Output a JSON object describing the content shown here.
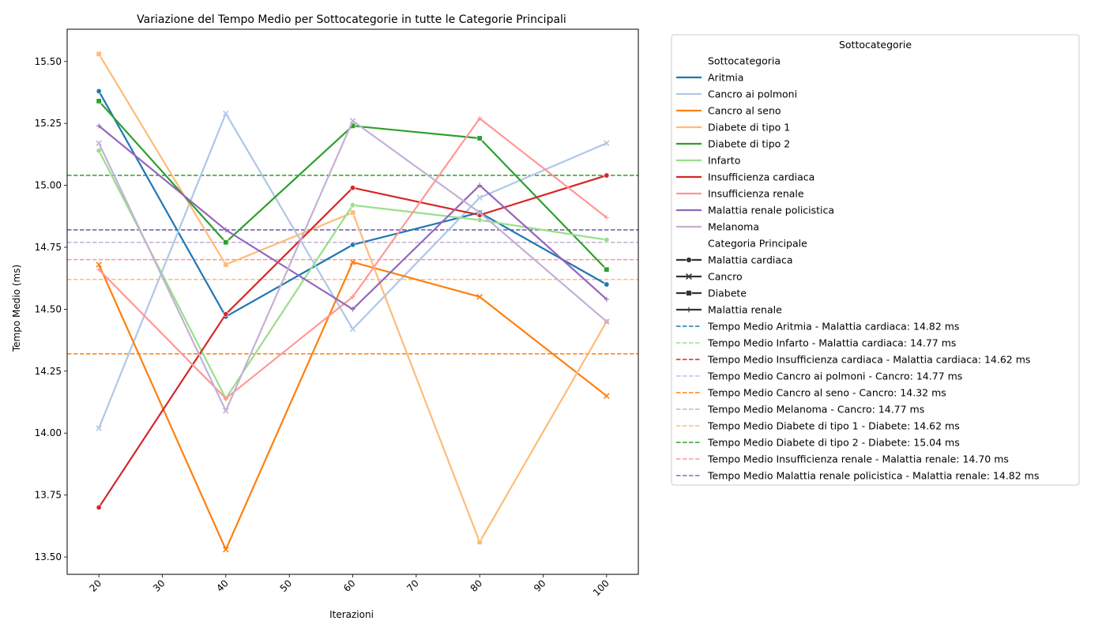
{
  "chart_data": {
    "type": "line",
    "title": "Variazione del Tempo Medio per Sottocategorie in tutte le Categorie Principali",
    "xlabel": "Iterazioni",
    "ylabel": "Tempo Medio (ms)",
    "x": [
      20,
      40,
      60,
      80,
      100
    ],
    "xlim": [
      15,
      105
    ],
    "ylim": [
      13.43,
      15.63
    ],
    "xticks": [
      "20",
      "30",
      "40",
      "50",
      "60",
      "70",
      "80",
      "90",
      "100"
    ],
    "xtick_values": [
      20,
      30,
      40,
      50,
      60,
      70,
      80,
      90,
      100
    ],
    "yticks": [
      "13.50",
      "13.75",
      "14.00",
      "14.25",
      "14.50",
      "14.75",
      "15.00",
      "15.25",
      "15.50"
    ],
    "ytick_values": [
      13.5,
      13.75,
      14.0,
      14.25,
      14.5,
      14.75,
      15.0,
      15.25,
      15.5
    ],
    "grid": false,
    "legend_placement": "outside-right",
    "legend_title": "Sottocategorie",
    "legend_hue_header": "Sottocategoria",
    "legend_style_header": "Categoria Principale",
    "series": [
      {
        "name": "Aritmia",
        "category": "Malattia cardiaca",
        "color": "#1f77b4",
        "marker": "circle",
        "values": [
          15.38,
          14.47,
          14.76,
          14.89,
          14.6
        ]
      },
      {
        "name": "Cancro ai polmoni",
        "category": "Cancro",
        "color": "#aec7e8",
        "marker": "x",
        "values": [
          14.02,
          15.29,
          14.42,
          14.95,
          15.17
        ]
      },
      {
        "name": "Cancro al seno",
        "category": "Cancro",
        "color": "#ff7f0e",
        "marker": "x",
        "values": [
          14.68,
          13.53,
          14.69,
          14.55,
          14.15
        ]
      },
      {
        "name": "Diabete di tipo 1",
        "category": "Diabete",
        "color": "#ffbb78",
        "marker": "square",
        "values": [
          15.53,
          14.68,
          14.89,
          13.56,
          14.45
        ]
      },
      {
        "name": "Diabete di tipo 2",
        "category": "Diabete",
        "color": "#2ca02c",
        "marker": "square",
        "values": [
          15.34,
          14.77,
          15.24,
          15.19,
          14.66
        ]
      },
      {
        "name": "Infarto",
        "category": "Malattia cardiaca",
        "color": "#98df8a",
        "marker": "circle",
        "values": [
          15.14,
          14.14,
          14.92,
          14.86,
          14.78
        ]
      },
      {
        "name": "Insufficienza cardiaca",
        "category": "Malattia cardiaca",
        "color": "#d62728",
        "marker": "circle",
        "values": [
          13.7,
          14.48,
          14.99,
          14.88,
          15.04
        ]
      },
      {
        "name": "Insufficienza renale",
        "category": "Malattia renale",
        "color": "#ff9896",
        "marker": "plus",
        "values": [
          14.66,
          14.14,
          14.55,
          15.27,
          14.87
        ]
      },
      {
        "name": "Malattia renale policistica",
        "category": "Malattia renale",
        "color": "#9467bd",
        "marker": "plus",
        "values": [
          15.24,
          14.82,
          14.5,
          15.0,
          14.54
        ]
      },
      {
        "name": "Melanoma",
        "category": "Cancro",
        "color": "#c5b0d5",
        "marker": "x",
        "values": [
          15.17,
          14.09,
          15.26,
          14.89,
          14.45
        ]
      }
    ],
    "style_legend": [
      {
        "name": "Malattia cardiaca",
        "marker": "circle"
      },
      {
        "name": "Cancro",
        "marker": "x"
      },
      {
        "name": "Diabete",
        "marker": "square"
      },
      {
        "name": "Malattia renale",
        "marker": "plus"
      }
    ],
    "mean_lines": [
      {
        "label": "Tempo Medio Aritmia - Malattia cardiaca: 14.82 ms",
        "value": 14.82,
        "color": "#1f77b4"
      },
      {
        "label": "Tempo Medio Infarto - Malattia cardiaca: 14.77 ms",
        "value": 14.77,
        "color": "#98df8a"
      },
      {
        "label": "Tempo Medio Insufficienza cardiaca - Malattia cardiaca: 14.62 ms",
        "value": 14.62,
        "color": "#d62728"
      },
      {
        "label": "Tempo Medio Cancro ai polmoni - Cancro: 14.77 ms",
        "value": 14.77,
        "color": "#aec7e8"
      },
      {
        "label": "Tempo Medio Cancro al seno - Cancro: 14.32 ms",
        "value": 14.32,
        "color": "#ff7f0e"
      },
      {
        "label": "Tempo Medio Melanoma - Cancro: 14.77 ms",
        "value": 14.77,
        "color": "#c5b0d5"
      },
      {
        "label": "Tempo Medio Diabete di tipo 1 - Diabete: 14.62 ms",
        "value": 14.62,
        "color": "#ffbb78"
      },
      {
        "label": "Tempo Medio Diabete di tipo 2 - Diabete: 15.04 ms",
        "value": 15.04,
        "color": "#2ca02c"
      },
      {
        "label": "Tempo Medio Insufficienza renale - Malattia renale: 14.70 ms",
        "value": 14.7,
        "color": "#ff9896"
      },
      {
        "label": "Tempo Medio Malattia renale policistica - Malattia renale: 14.82 ms",
        "value": 14.82,
        "color": "#9467bd"
      }
    ]
  }
}
